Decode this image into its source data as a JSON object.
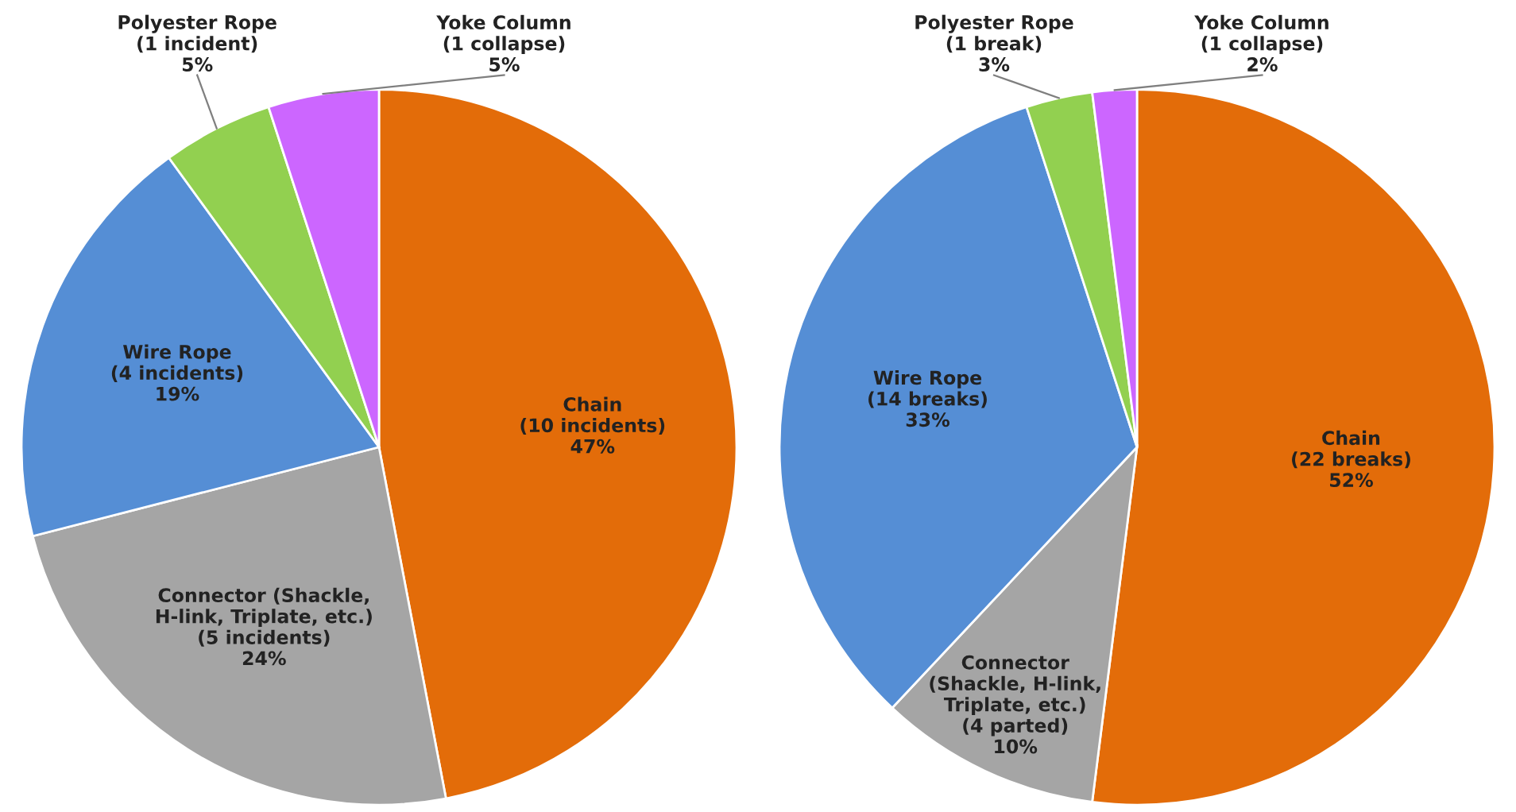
{
  "chart_data": [
    {
      "type": "pie",
      "categories": [
        "Chain\n(10 incidents)",
        "Connector (Shackle,\nH-link, Triplate, etc.)\n(5 incidents)",
        "Wire Rope\n(4 incidents)",
        "Polyester Rope\n(1 incident)",
        "Yoke Column\n(1 collapse)"
      ],
      "values": [
        47,
        24,
        19,
        5,
        5
      ],
      "value_labels": [
        "47%",
        "24%",
        "19%",
        "5%",
        "5%"
      ],
      "colors": [
        "#e36c09",
        "#a5a5a5",
        "#558ed5",
        "#92d050",
        "#cc66ff"
      ]
    },
    {
      "type": "pie",
      "categories": [
        "Chain\n(22 breaks)",
        "Connector\n(Shackle, H-link,\nTriplate, etc.)\n(4 parted)",
        "Wire Rope\n(14 breaks)",
        "Polyester Rope\n(1 break)",
        "Yoke Column\n(1 collapse)"
      ],
      "values": [
        52,
        10,
        33,
        3,
        2
      ],
      "value_labels": [
        "52%",
        "10%",
        "33%",
        "3%",
        "2%"
      ],
      "colors": [
        "#e36c09",
        "#a5a5a5",
        "#558ed5",
        "#92d050",
        "#cc66ff"
      ]
    }
  ]
}
